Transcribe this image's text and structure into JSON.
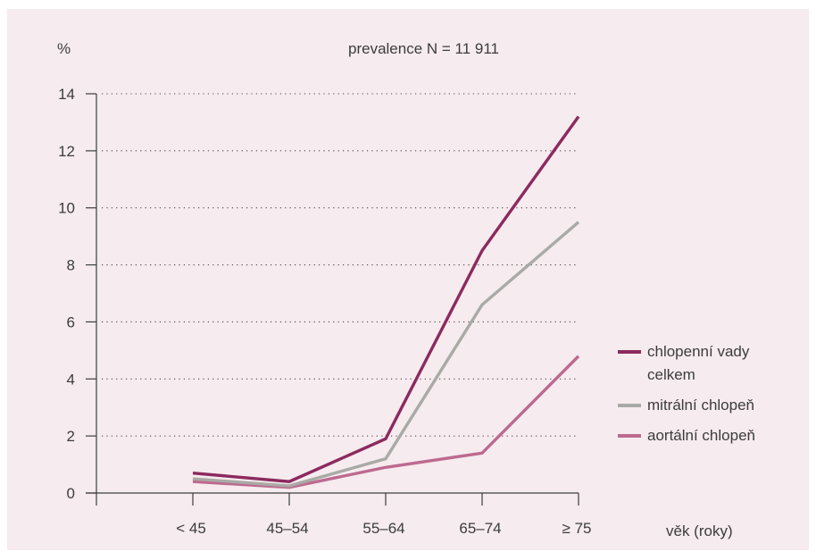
{
  "chart_data": {
    "type": "line",
    "title": "prevalence N = 11 911",
    "ylabel": "%",
    "xlabel": "věk (roky)",
    "categories": [
      "< 45",
      "45–54",
      "55–64",
      "65–74",
      "≥ 75"
    ],
    "ylim": [
      0,
      14
    ],
    "yticks": [
      0,
      2,
      4,
      6,
      8,
      10,
      12,
      14
    ],
    "grid": true,
    "legend_position": "right",
    "series": [
      {
        "name": "chlopenní vady celkem",
        "name_lines": [
          "chlopenní vady",
          "celkem"
        ],
        "color": "#8c2a5e",
        "values": [
          0.7,
          0.4,
          1.9,
          8.5,
          13.2
        ]
      },
      {
        "name": "mitrální chlopeň",
        "name_lines": [
          "mitrální chlopeň"
        ],
        "color": "#a9aaa6",
        "values": [
          0.5,
          0.25,
          1.2,
          6.6,
          9.5
        ]
      },
      {
        "name": "aortální chlopeň",
        "name_lines": [
          "aortální chlopeň"
        ],
        "color": "#bd6a8f",
        "values": [
          0.4,
          0.2,
          0.9,
          1.4,
          4.8
        ]
      }
    ]
  }
}
